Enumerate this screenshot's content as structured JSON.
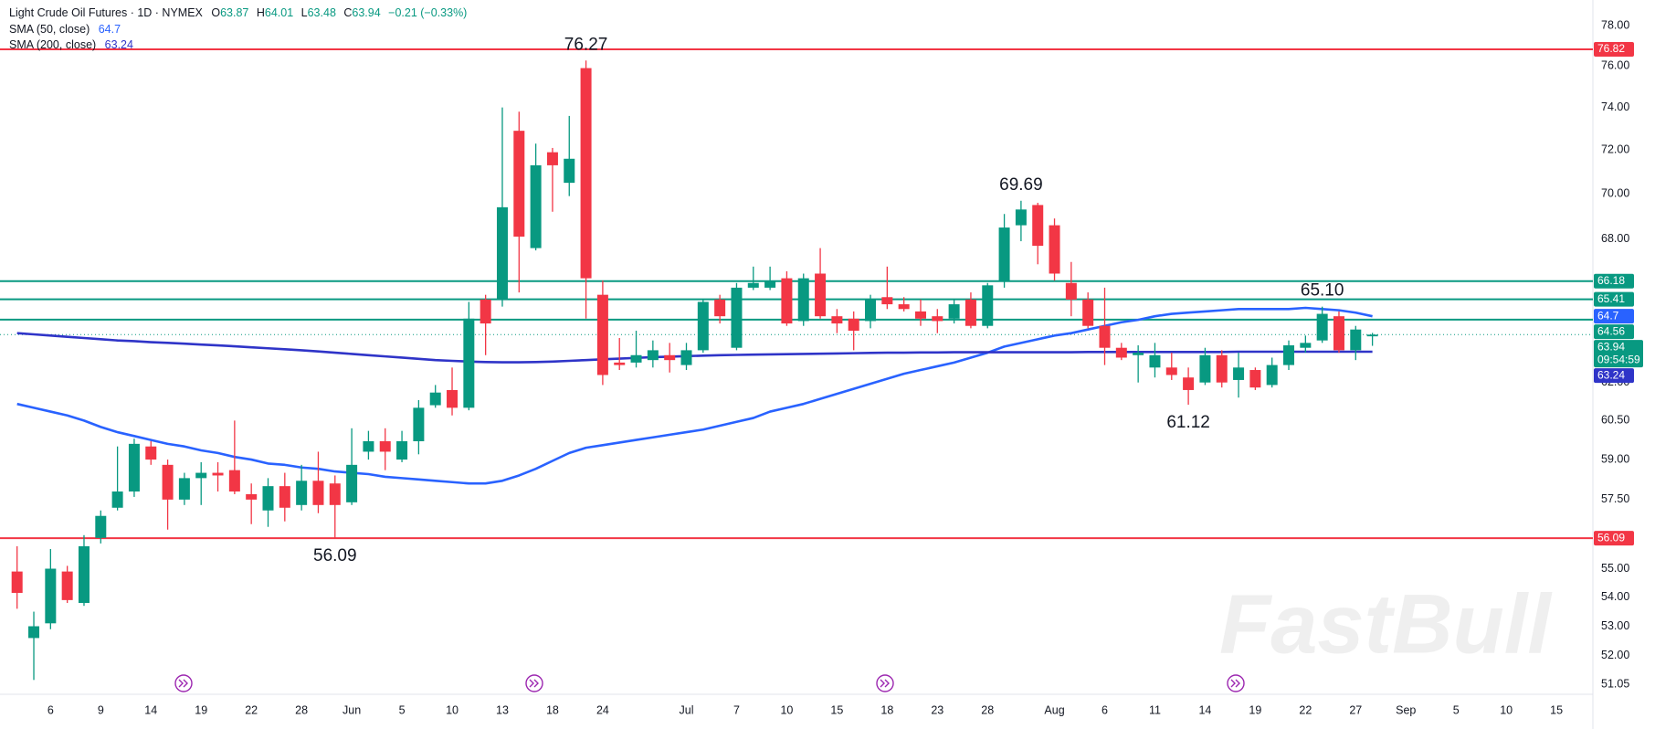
{
  "chart_data": {
    "type": "candlestick",
    "title": "Light Crude Oil Futures · 1D · NYMEX",
    "quote": [
      {
        "label": "O",
        "value": 63.87
      },
      {
        "label": "H",
        "value": 64.01
      },
      {
        "label": "L",
        "value": 63.48
      },
      {
        "label": "C",
        "value": 63.94
      }
    ],
    "change": "−0.21 (−0.33%)",
    "countdown": "09:54:59",
    "watermark": "FastBull",
    "up_color": "#089981",
    "down_color": "#f23645",
    "log_scale": true,
    "grid": false,
    "ylim": [
      50.73,
      79.3
    ],
    "yticks": [
      {
        "value": 78,
        "label": "78.00"
      },
      {
        "value": 76,
        "label": "76.00"
      },
      {
        "value": 74,
        "label": "74.00"
      },
      {
        "value": 72,
        "label": "72.00"
      },
      {
        "value": 70,
        "label": "70.00"
      },
      {
        "value": 68,
        "label": "68.00"
      },
      {
        "value": 62,
        "label": "62.00"
      },
      {
        "value": 60.5,
        "label": "60.50"
      },
      {
        "value": 59,
        "label": "59.00"
      },
      {
        "value": 57.5,
        "label": "57.50"
      },
      {
        "value": 55,
        "label": "55.00"
      },
      {
        "value": 54,
        "label": "54.00"
      },
      {
        "value": 53,
        "label": "53.00"
      },
      {
        "value": 52,
        "label": "52.00"
      },
      {
        "value": 51.05,
        "label": "51.05"
      }
    ],
    "categories": [
      null,
      null,
      "6",
      null,
      null,
      "9",
      null,
      null,
      "14",
      null,
      null,
      "19",
      null,
      null,
      "22",
      null,
      null,
      "28",
      null,
      null,
      "Jun",
      null,
      null,
      "5",
      null,
      null,
      "10",
      null,
      null,
      "13",
      null,
      null,
      "18",
      null,
      null,
      "24",
      null,
      null,
      null,
      null,
      "Jul",
      null,
      null,
      "7",
      null,
      null,
      "10",
      null,
      null,
      "15",
      null,
      null,
      "18",
      null,
      null,
      "23",
      null,
      null,
      "28",
      null,
      null,
      null,
      "Aug",
      null,
      null,
      "6",
      null,
      null,
      "11",
      null,
      null,
      "14",
      null,
      null,
      "19",
      null,
      null,
      "22",
      null,
      null,
      "27",
      null,
      null,
      "Sep",
      null,
      null,
      "5",
      null,
      null,
      "10",
      null,
      null,
      "15"
    ],
    "open": [
      54.9,
      52.6,
      53.1,
      54.9,
      53.8,
      56.1,
      57.2,
      57.8,
      59.5,
      58.8,
      57.5,
      58.3,
      58.5,
      58.6,
      57.7,
      57.1,
      58.0,
      57.3,
      58.2,
      58.1,
      57.4,
      59.3,
      59.7,
      59.0,
      59.7,
      61.1,
      61.7,
      61.0,
      65.4,
      65.4,
      72.9,
      67.6,
      71.9,
      70.5,
      75.9,
      65.6,
      62.8,
      62.8,
      62.9,
      63.1,
      62.7,
      63.3,
      65.4,
      63.4,
      65.9,
      65.9,
      66.3,
      64.5,
      66.5,
      64.7,
      64.6,
      64.5,
      65.5,
      65.2,
      64.9,
      64.7,
      64.6,
      65.4,
      64.3,
      66.2,
      68.6,
      69.5,
      68.6,
      66.1,
      65.4,
      64.3,
      63.4,
      63.1,
      62.6,
      62.6,
      62.2,
      62.0,
      63.1,
      62.1,
      62.5,
      61.9,
      62.7,
      63.4,
      63.7,
      64.7,
      63.3,
      63.87,
      null,
      null,
      null,
      null,
      null,
      null,
      null,
      null,
      null,
      null,
      null
    ],
    "high": [
      55.8,
      53.5,
      55.7,
      55.1,
      56.2,
      57.1,
      59.5,
      59.8,
      59.7,
      59.0,
      58.5,
      58.9,
      58.9,
      60.5,
      58.1,
      58.3,
      58.5,
      58.8,
      59.3,
      58.4,
      60.2,
      60.1,
      60.2,
      60.1,
      61.3,
      61.9,
      62.6,
      65.3,
      65.6,
      74.0,
      73.8,
      72.3,
      72.1,
      73.6,
      76.27,
      66.2,
      63.8,
      64.1,
      63.7,
      63.6,
      63.6,
      65.4,
      65.6,
      66.1,
      66.8,
      66.8,
      66.6,
      66.5,
      67.6,
      65.0,
      64.9,
      65.6,
      66.8,
      65.5,
      65.4,
      65.0,
      65.4,
      65.7,
      66.1,
      69.1,
      69.69,
      69.6,
      68.9,
      67.0,
      65.7,
      65.9,
      63.6,
      63.5,
      63.6,
      63.2,
      62.6,
      63.4,
      63.3,
      63.2,
      62.6,
      63.0,
      63.7,
      63.9,
      65.1,
      64.9,
      64.3,
      64.01,
      null,
      null,
      null,
      null,
      null,
      null,
      null,
      null,
      null,
      null,
      null
    ],
    "low": [
      53.6,
      51.2,
      52.9,
      53.8,
      53.7,
      55.9,
      57.1,
      57.6,
      58.8,
      56.4,
      57.3,
      57.3,
      57.8,
      57.7,
      56.6,
      56.5,
      56.7,
      57.1,
      57.0,
      56.09,
      57.3,
      59.0,
      58.6,
      58.9,
      59.2,
      61.0,
      60.7,
      60.9,
      63.1,
      65.1,
      65.7,
      67.5,
      69.2,
      69.9,
      64.6,
      61.9,
      62.5,
      62.6,
      62.6,
      62.4,
      62.5,
      63.2,
      64.4,
      63.3,
      65.8,
      65.8,
      64.3,
      64.3,
      64.6,
      64.0,
      63.3,
      64.2,
      65.0,
      64.9,
      64.3,
      64.0,
      64.4,
      64.2,
      64.2,
      65.9,
      67.9,
      66.9,
      66.2,
      64.7,
      64.2,
      62.7,
      62.9,
      62.0,
      62.2,
      62.1,
      61.12,
      61.9,
      61.8,
      61.4,
      61.7,
      61.8,
      62.5,
      63.2,
      63.6,
      63.2,
      62.9,
      63.48,
      null,
      null,
      null,
      null,
      null,
      null,
      null,
      null,
      null,
      null,
      null
    ],
    "close": [
      54.15,
      53.0,
      55.0,
      53.9,
      55.8,
      56.9,
      57.8,
      59.6,
      59.0,
      57.5,
      58.3,
      58.5,
      58.4,
      57.8,
      57.5,
      58.0,
      57.2,
      58.2,
      57.3,
      57.3,
      58.8,
      59.7,
      59.3,
      59.7,
      61.0,
      61.6,
      61.0,
      64.6,
      64.4,
      69.4,
      68.1,
      71.3,
      71.3,
      71.6,
      66.3,
      62.3,
      62.7,
      63.1,
      63.3,
      62.9,
      63.3,
      65.3,
      64.7,
      65.9,
      66.1,
      66.2,
      64.4,
      66.3,
      64.7,
      64.4,
      64.1,
      65.4,
      65.2,
      65.0,
      64.6,
      64.5,
      65.2,
      64.3,
      66.0,
      68.5,
      69.3,
      67.7,
      66.5,
      65.4,
      64.3,
      63.4,
      63.0,
      63.2,
      63.1,
      62.3,
      61.7,
      63.1,
      62.0,
      62.6,
      61.8,
      62.7,
      63.5,
      63.6,
      64.8,
      63.3,
      64.15,
      63.94,
      null,
      null,
      null,
      null,
      null,
      null,
      null,
      null,
      null,
      null,
      null
    ],
    "high_labels": [
      null,
      null,
      null,
      null,
      null,
      null,
      null,
      null,
      null,
      null,
      null,
      null,
      null,
      null,
      null,
      null,
      null,
      null,
      null,
      null,
      null,
      null,
      null,
      null,
      null,
      null,
      null,
      null,
      null,
      null,
      null,
      null,
      null,
      null,
      "76.27",
      null,
      null,
      null,
      null,
      null,
      null,
      null,
      null,
      null,
      null,
      null,
      null,
      null,
      null,
      null,
      null,
      null,
      null,
      null,
      null,
      null,
      null,
      null,
      null,
      null,
      "69.69",
      null,
      null,
      null,
      null,
      null,
      null,
      null,
      null,
      null,
      null,
      null,
      null,
      null,
      null,
      null,
      null,
      null,
      "65.10",
      null,
      null,
      null,
      null,
      null,
      null,
      null,
      null,
      null,
      null,
      null,
      null,
      null,
      null
    ],
    "low_labels": [
      null,
      null,
      null,
      null,
      null,
      null,
      null,
      null,
      null,
      null,
      null,
      null,
      null,
      null,
      null,
      null,
      null,
      null,
      null,
      "56.09",
      null,
      null,
      null,
      null,
      null,
      null,
      null,
      null,
      null,
      null,
      null,
      null,
      null,
      null,
      null,
      null,
      null,
      null,
      null,
      null,
      null,
      null,
      null,
      null,
      null,
      null,
      null,
      null,
      null,
      null,
      null,
      null,
      null,
      null,
      null,
      null,
      null,
      null,
      null,
      null,
      null,
      null,
      null,
      null,
      null,
      null,
      null,
      null,
      null,
      null,
      "61.12",
      null,
      null,
      null,
      null,
      null,
      null,
      null,
      null,
      null,
      null,
      null,
      null,
      null,
      null,
      null,
      null,
      null,
      null,
      null,
      null,
      null,
      null
    ],
    "series": [
      {
        "name": "SMA (50, close)",
        "color": "#2962ff",
        "values": [
          61.15,
          61.0,
          60.85,
          60.7,
          60.5,
          60.25,
          60.05,
          59.9,
          59.75,
          59.6,
          59.5,
          59.35,
          59.25,
          59.1,
          59.0,
          58.85,
          58.8,
          58.7,
          58.65,
          58.55,
          58.5,
          58.45,
          58.35,
          58.3,
          58.25,
          58.2,
          58.15,
          58.1,
          58.1,
          58.2,
          58.4,
          58.65,
          58.95,
          59.25,
          59.45,
          59.55,
          59.65,
          59.75,
          59.85,
          59.95,
          60.05,
          60.15,
          60.3,
          60.45,
          60.6,
          60.85,
          61.0,
          61.15,
          61.35,
          61.55,
          61.75,
          61.95,
          62.15,
          62.35,
          62.5,
          62.65,
          62.8,
          63.0,
          63.2,
          63.45,
          63.6,
          63.75,
          63.9,
          64.0,
          64.15,
          64.3,
          64.45,
          64.55,
          64.7,
          64.8,
          64.85,
          64.9,
          64.95,
          65.0,
          65.0,
          65.0,
          65.0,
          65.05,
          65.0,
          64.95,
          64.85,
          64.7,
          null,
          null,
          null,
          null,
          null,
          null,
          null,
          null,
          null,
          null,
          null
        ]
      },
      {
        "name": "SMA (200, close)",
        "color": "#2f34c8",
        "values": [
          64.0,
          63.95,
          63.9,
          63.85,
          63.8,
          63.75,
          63.7,
          63.67,
          63.63,
          63.6,
          63.57,
          63.53,
          63.5,
          63.46,
          63.42,
          63.38,
          63.34,
          63.3,
          63.25,
          63.2,
          63.15,
          63.1,
          63.05,
          63.0,
          62.95,
          62.9,
          62.87,
          62.84,
          62.82,
          62.81,
          62.81,
          62.82,
          62.84,
          62.87,
          62.9,
          62.93,
          62.96,
          62.99,
          63.02,
          63.04,
          63.06,
          63.08,
          63.1,
          63.11,
          63.12,
          63.13,
          63.14,
          63.15,
          63.16,
          63.17,
          63.18,
          63.19,
          63.2,
          63.2,
          63.21,
          63.21,
          63.22,
          63.22,
          63.22,
          63.22,
          63.22,
          63.22,
          63.22,
          63.22,
          63.23,
          63.23,
          63.23,
          63.23,
          63.23,
          63.23,
          63.23,
          63.23,
          63.23,
          63.24,
          63.24,
          63.24,
          63.24,
          63.24,
          63.24,
          63.24,
          63.24,
          63.24,
          null,
          null,
          null,
          null,
          null,
          null,
          null,
          null,
          null,
          null,
          null
        ]
      }
    ],
    "levels": [
      {
        "value": 76.82,
        "color": "#f23645"
      },
      {
        "value": 66.18,
        "color": "#089981"
      },
      {
        "value": 65.41,
        "color": "#089981"
      },
      {
        "value": 64.56,
        "color": "#089981"
      },
      {
        "value": 56.09,
        "color": "#f23645"
      }
    ]
  }
}
